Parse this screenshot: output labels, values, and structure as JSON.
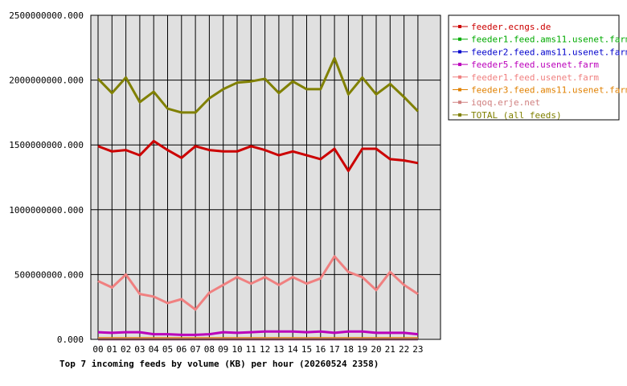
{
  "chart_data": {
    "type": "line",
    "caption": "Top 7 incoming feeds by volume (KB) per hour (20260524 2358)",
    "x": [
      "00",
      "01",
      "02",
      "03",
      "04",
      "05",
      "06",
      "07",
      "08",
      "09",
      "10",
      "11",
      "12",
      "13",
      "14",
      "15",
      "16",
      "17",
      "18",
      "19",
      "20",
      "21",
      "22",
      "23"
    ],
    "ylim": [
      0,
      2500000000
    ],
    "yticks": [
      0,
      500000000,
      1000000000,
      1500000000,
      2000000000,
      2500000000
    ],
    "ytick_labels": [
      "0.000",
      "500000000.000",
      "1000000000.000",
      "1500000000.000",
      "2000000000.000",
      "2500000000.000"
    ],
    "grid": true,
    "legend_position": "right",
    "series": [
      {
        "name": "feeder.ecngs.de",
        "color": "#cc0000",
        "values": [
          1490000000,
          1450000000,
          1460000000,
          1420000000,
          1530000000,
          1460000000,
          1400000000,
          1490000000,
          1460000000,
          1450000000,
          1450000000,
          1490000000,
          1460000000,
          1420000000,
          1450000000,
          1420000000,
          1390000000,
          1470000000,
          1300000000,
          1470000000,
          1470000000,
          1390000000,
          1380000000,
          1360000000
        ]
      },
      {
        "name": "feeder1.feed.ams11.usenet.farm",
        "color": "#00aa00",
        "values": [
          3000000,
          3000000,
          3000000,
          3000000,
          3000000,
          3000000,
          3000000,
          3000000,
          3000000,
          3000000,
          3000000,
          3000000,
          3000000,
          3000000,
          3000000,
          3000000,
          3000000,
          3000000,
          3000000,
          3000000,
          3000000,
          3000000,
          3000000,
          3000000
        ]
      },
      {
        "name": "feeder2.feed.ams11.usenet.farm",
        "color": "#0000cc",
        "values": [
          2000000,
          2000000,
          2000000,
          2000000,
          2000000,
          2000000,
          2000000,
          2000000,
          2000000,
          2000000,
          2000000,
          2000000,
          2000000,
          2000000,
          2000000,
          2000000,
          2000000,
          2000000,
          2000000,
          2000000,
          2000000,
          2000000,
          2000000,
          2000000
        ]
      },
      {
        "name": "feeder5.feed.usenet.farm",
        "color": "#bb00bb",
        "values": [
          55000000,
          50000000,
          55000000,
          55000000,
          40000000,
          40000000,
          35000000,
          35000000,
          40000000,
          55000000,
          50000000,
          55000000,
          60000000,
          60000000,
          60000000,
          55000000,
          60000000,
          50000000,
          60000000,
          60000000,
          50000000,
          50000000,
          50000000,
          40000000
        ]
      },
      {
        "name": "feeder1.feed.usenet.farm",
        "color": "#f08080",
        "values": [
          450000000,
          400000000,
          500000000,
          350000000,
          330000000,
          280000000,
          310000000,
          230000000,
          360000000,
          420000000,
          480000000,
          430000000,
          480000000,
          420000000,
          480000000,
          430000000,
          470000000,
          640000000,
          520000000,
          480000000,
          380000000,
          520000000,
          420000000,
          350000000
        ]
      },
      {
        "name": "feeder3.feed.ams11.usenet.farm",
        "color": "#e08000",
        "values": [
          8000000,
          8000000,
          8000000,
          8000000,
          8000000,
          8000000,
          8000000,
          8000000,
          8000000,
          8000000,
          8000000,
          8000000,
          8000000,
          8000000,
          8000000,
          8000000,
          8000000,
          8000000,
          8000000,
          8000000,
          8000000,
          8000000,
          8000000,
          8000000
        ]
      },
      {
        "name": "iqoq.erje.net",
        "color": "#d08080",
        "values": [
          1000000,
          1000000,
          1000000,
          1000000,
          1000000,
          1000000,
          1000000,
          1000000,
          1000000,
          1000000,
          1000000,
          1000000,
          1000000,
          1000000,
          1000000,
          1000000,
          1000000,
          1000000,
          1000000,
          1000000,
          1000000,
          1000000,
          1000000,
          1000000
        ]
      },
      {
        "name": "TOTAL (all feeds)",
        "color": "#808000",
        "values": [
          2010000000,
          1900000000,
          2020000000,
          1830000000,
          1910000000,
          1780000000,
          1750000000,
          1750000000,
          1860000000,
          1930000000,
          1980000000,
          1990000000,
          2010000000,
          1900000000,
          1990000000,
          1930000000,
          1930000000,
          2170000000,
          1890000000,
          2020000000,
          1890000000,
          1970000000,
          1870000000,
          1760000000
        ]
      }
    ]
  }
}
